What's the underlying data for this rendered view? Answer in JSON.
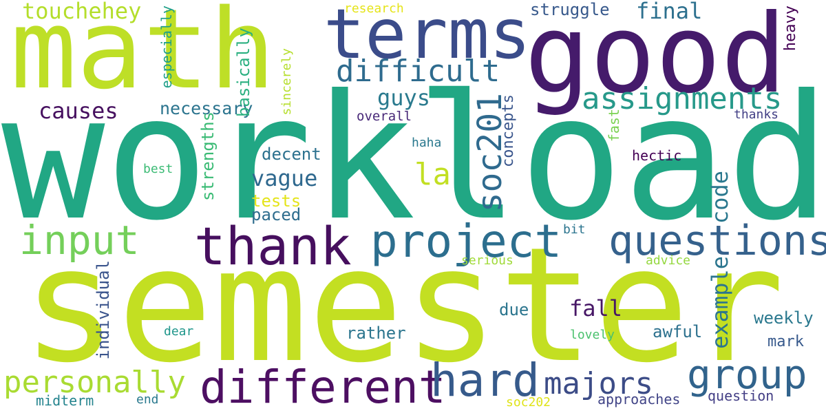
{
  "words": [
    {
      "text": "workload",
      "color": "#21a784",
      "vertical": false
    },
    {
      "text": "semester",
      "color": "#c3df22",
      "vertical": false
    },
    {
      "text": "math",
      "color": "#bedf27",
      "vertical": false
    },
    {
      "text": "good",
      "color": "#451b6b",
      "vertical": false
    },
    {
      "text": "terms",
      "color": "#3b4c8a",
      "vertical": false
    },
    {
      "text": "thank",
      "color": "#460f5e",
      "vertical": false
    },
    {
      "text": "project",
      "color": "#2c6e8e",
      "vertical": false
    },
    {
      "text": "questions",
      "color": "#35618c",
      "vertical": false
    },
    {
      "text": "different",
      "color": "#4d0f62",
      "vertical": false
    },
    {
      "text": "hard",
      "color": "#365a8b",
      "vertical": false
    },
    {
      "text": "group",
      "color": "#31638c",
      "vertical": false
    },
    {
      "text": "input",
      "color": "#74cf5a",
      "vertical": false
    },
    {
      "text": "assignments",
      "color": "#27998a",
      "vertical": false
    },
    {
      "text": "difficult",
      "color": "#2e6b8e",
      "vertical": false
    },
    {
      "text": "personally",
      "color": "#a9db32",
      "vertical": false
    },
    {
      "text": "majors",
      "color": "#3c4c87",
      "vertical": false
    },
    {
      "text": "soc201",
      "color": "#2f6a8e",
      "vertical": true
    },
    {
      "text": "touchehey",
      "color": "#b4de2b",
      "vertical": false
    },
    {
      "text": "la",
      "color": "#c2df23",
      "vertical": false
    },
    {
      "text": "final",
      "color": "#2d708e",
      "vertical": false
    },
    {
      "text": "causes",
      "color": "#46105f",
      "vertical": false
    },
    {
      "text": "guys",
      "color": "#2a7a8e",
      "vertical": false
    },
    {
      "text": "vague",
      "color": "#2e688e",
      "vertical": false
    },
    {
      "text": "fall",
      "color": "#471766",
      "vertical": false
    },
    {
      "text": "example",
      "color": "#2b758e",
      "vertical": true
    },
    {
      "text": "code",
      "color": "#2a788e",
      "vertical": true
    },
    {
      "text": "necessary",
      "color": "#2b748e",
      "vertical": false
    },
    {
      "text": "struggle",
      "color": "#38598c",
      "vertical": false
    },
    {
      "text": "decent",
      "color": "#2c718e",
      "vertical": false
    },
    {
      "text": "weekly",
      "color": "#2a788e",
      "vertical": false
    },
    {
      "text": "awful",
      "color": "#2d718e",
      "vertical": false
    },
    {
      "text": "rather",
      "color": "#2b758e",
      "vertical": false
    },
    {
      "text": "individual",
      "color": "#3a548c",
      "vertical": true
    },
    {
      "text": "tests",
      "color": "#e4e419",
      "vertical": false
    },
    {
      "text": "paced",
      "color": "#2e6d8e",
      "vertical": false
    },
    {
      "text": "due",
      "color": "#2b758e",
      "vertical": false
    },
    {
      "text": "mark",
      "color": "#37598c",
      "vertical": false
    },
    {
      "text": "concepts",
      "color": "#39558c",
      "vertical": true
    },
    {
      "text": "strengths",
      "color": "#3bbb75",
      "vertical": true
    },
    {
      "text": "basically",
      "color": "#29af7f",
      "vertical": true
    },
    {
      "text": "heavy",
      "color": "#440154",
      "vertical": true
    },
    {
      "text": "especially",
      "color": "#1f9f88",
      "vertical": true
    },
    {
      "text": "midterm",
      "color": "#25848e",
      "vertical": false
    },
    {
      "text": "end",
      "color": "#29798e",
      "vertical": false
    },
    {
      "text": "approaches",
      "color": "#414487",
      "vertical": false
    },
    {
      "text": "question",
      "color": "#433e85",
      "vertical": false
    },
    {
      "text": "soc202",
      "color": "#dfe318",
      "vertical": false
    },
    {
      "text": "fast",
      "color": "#7ad151",
      "vertical": true
    },
    {
      "text": "hectic",
      "color": "#440154",
      "vertical": false
    },
    {
      "text": "overall",
      "color": "#482878",
      "vertical": false
    },
    {
      "text": "thanks",
      "color": "#423f85",
      "vertical": false
    },
    {
      "text": "haha",
      "color": "#2a788e",
      "vertical": false
    },
    {
      "text": "best",
      "color": "#3cbb75",
      "vertical": false
    },
    {
      "text": "bit",
      "color": "#2b748e",
      "vertical": false
    },
    {
      "text": "serious",
      "color": "#a0da39",
      "vertical": false
    },
    {
      "text": "advice",
      "color": "#95d840",
      "vertical": false
    },
    {
      "text": "dear",
      "color": "#1f968b",
      "vertical": false
    },
    {
      "text": "lovely",
      "color": "#4ac16d",
      "vertical": false
    },
    {
      "text": "sincerely",
      "color": "#b5de2b",
      "vertical": true
    },
    {
      "text": "research",
      "color": "#e5e419",
      "vertical": false
    }
  ]
}
